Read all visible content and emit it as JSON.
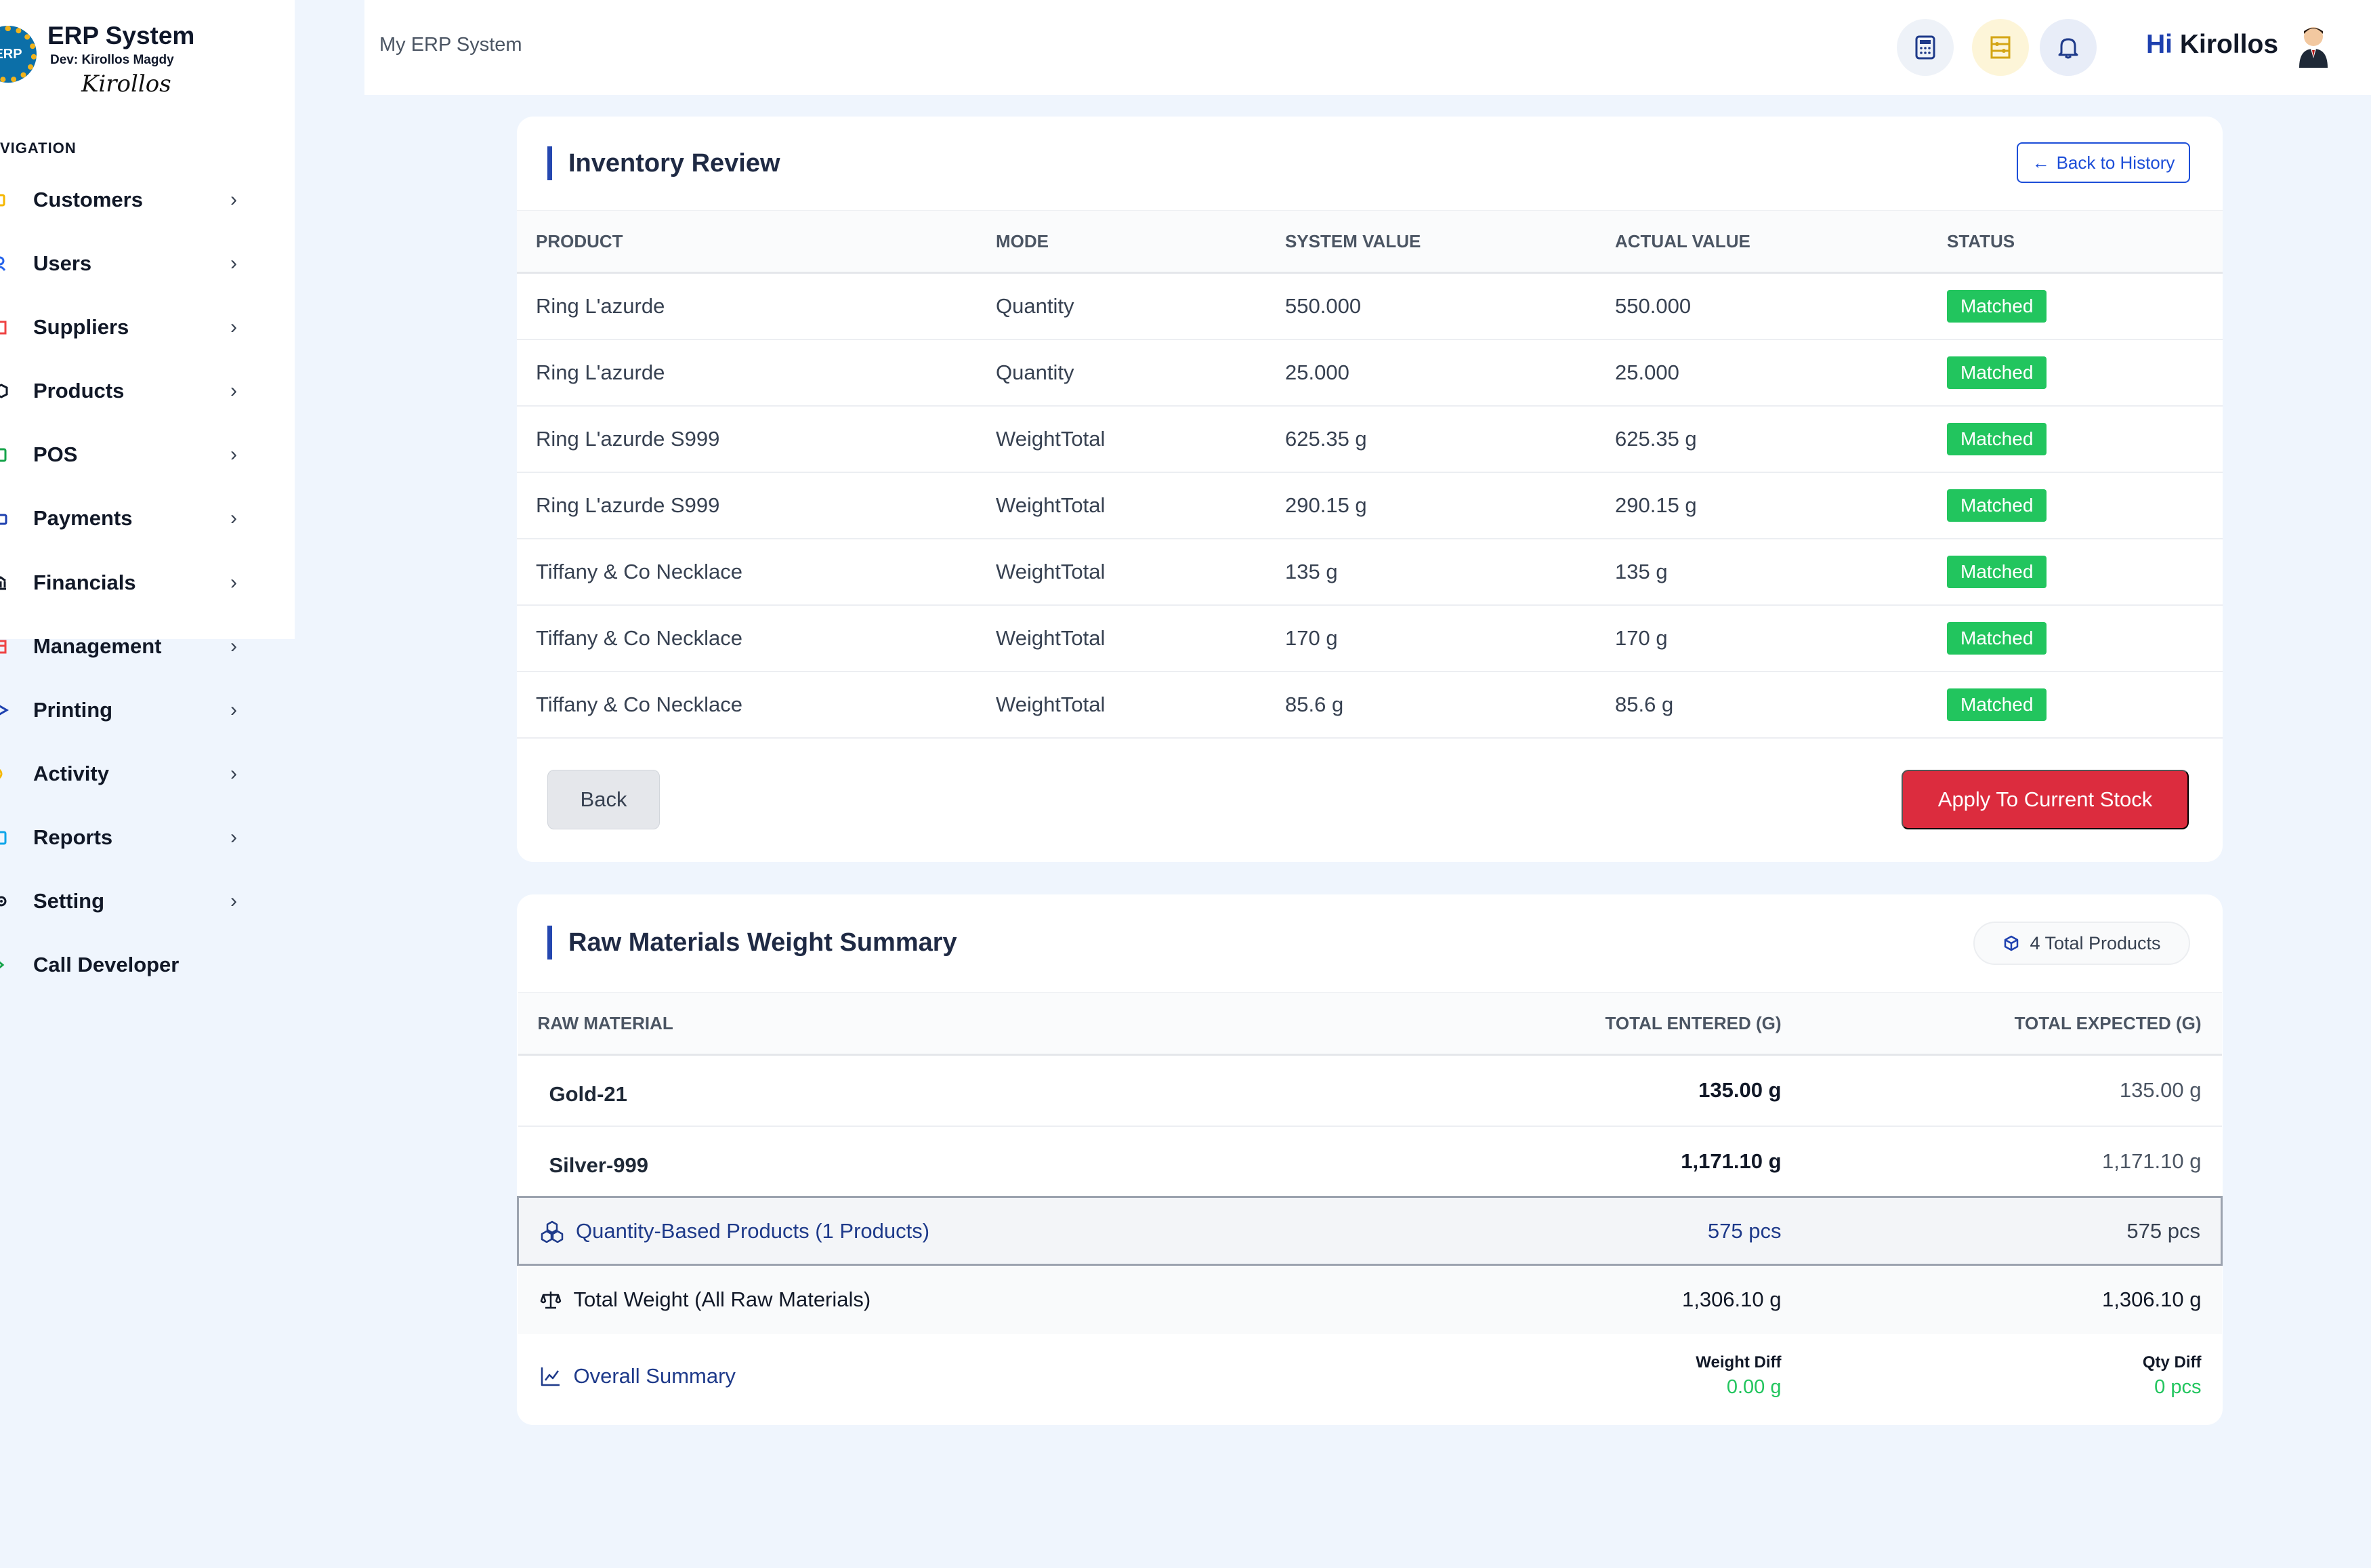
{
  "brand": {
    "logo_text": "ERP",
    "title": "ERP System",
    "dev": "Dev: Kirollos Magdy",
    "signature": "Kirollos"
  },
  "nav": {
    "heading": "VIGATION",
    "items": [
      {
        "label": "Customers",
        "icon": "customers-icon",
        "color": "#f5b700"
      },
      {
        "label": "Users",
        "icon": "users-icon",
        "color": "#2563eb"
      },
      {
        "label": "Suppliers",
        "icon": "suppliers-icon",
        "color": "#ef4444"
      },
      {
        "label": "Products",
        "icon": "products-icon",
        "color": "#111827"
      },
      {
        "label": "POS",
        "icon": "pos-icon",
        "color": "#16a34a"
      },
      {
        "label": "Payments",
        "icon": "payments-icon",
        "color": "#1e40af"
      },
      {
        "label": "Financials",
        "icon": "financials-icon",
        "color": "#111827"
      },
      {
        "label": "Management",
        "icon": "management-icon",
        "color": "#ef4444"
      },
      {
        "label": "Printing",
        "icon": "printing-icon",
        "color": "#1e40af"
      },
      {
        "label": "Activity",
        "icon": "activity-icon",
        "color": "#f5b700"
      },
      {
        "label": "Reports",
        "icon": "reports-icon",
        "color": "#0ea5e9"
      },
      {
        "label": "Setting",
        "icon": "setting-icon",
        "color": "#111827"
      },
      {
        "label": "Call Developer",
        "icon": "call-developer-icon",
        "color": "#16a34a"
      }
    ]
  },
  "topbar": {
    "app_name": "My ERP System",
    "greeting_hi": "Hi",
    "greeting_name": "Kirollos",
    "icons": [
      "calculator-icon",
      "abacus-icon",
      "bell-icon"
    ]
  },
  "inventory": {
    "title": "Inventory Review",
    "back_history_label": "Back to History",
    "headers": [
      "PRODUCT",
      "MODE",
      "SYSTEM VALUE",
      "ACTUAL VALUE",
      "STATUS"
    ],
    "rows": [
      [
        "Ring L'azurde",
        "Quantity",
        "550.000",
        "550.000",
        "Matched"
      ],
      [
        "Ring L'azurde",
        "Quantity",
        "25.000",
        "25.000",
        "Matched"
      ],
      [
        "Ring L'azurde S999",
        "WeightTotal",
        "625.35 g",
        "625.35 g",
        "Matched"
      ],
      [
        "Ring L'azurde S999",
        "WeightTotal",
        "290.15 g",
        "290.15 g",
        "Matched"
      ],
      [
        "Tiffany & Co Necklace",
        "WeightTotal",
        "135 g",
        "135 g",
        "Matched"
      ],
      [
        "Tiffany & Co Necklace",
        "WeightTotal",
        "170 g",
        "170 g",
        "Matched"
      ],
      [
        "Tiffany & Co Necklace",
        "WeightTotal",
        "85.6 g",
        "85.6 g",
        "Matched"
      ]
    ],
    "back_label": "Back",
    "apply_label": "Apply To Current Stock"
  },
  "raw": {
    "title": "Raw Materials Weight Summary",
    "total_products": "4 Total Products",
    "headers": [
      "RAW MATERIAL",
      "TOTAL ENTERED (G)",
      "TOTAL EXPECTED (G)"
    ],
    "materials": [
      {
        "name": "Gold-21",
        "entered": "135.00 g",
        "expected": "135.00 g"
      },
      {
        "name": "Silver-999",
        "entered": "1,171.10 g",
        "expected": "1,171.10 g"
      }
    ],
    "qty_row": {
      "label": "Quantity-Based Products (1 Products)",
      "entered": "575 pcs",
      "expected": "575 pcs"
    },
    "total_row": {
      "label": "Total Weight (All Raw Materials)",
      "entered": "1,306.10 g",
      "expected": "1,306.10 g"
    },
    "overall": {
      "label": "Overall Summary",
      "weight_diff_label": "Weight Diff",
      "weight_diff": "0.00 g",
      "qty_diff_label": "Qty Diff",
      "qty_diff": "0 pcs"
    }
  },
  "colors": {
    "accent": "#2547b0",
    "success": "#22c55e",
    "danger": "#dc2c3e",
    "background": "#eff5fd"
  }
}
